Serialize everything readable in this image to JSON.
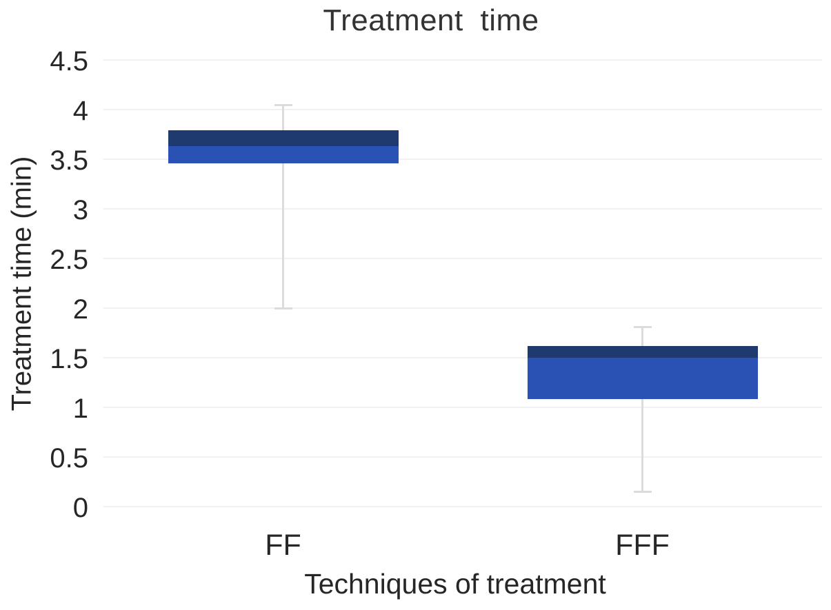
{
  "chart": {
    "title": "Treatment time",
    "y_axis": {
      "label": "Treatment time (min)",
      "ticks": [
        "4.5",
        "4",
        "3.5",
        "3",
        "2.5",
        "2",
        "1.5",
        "1",
        "0.5",
        "0"
      ]
    },
    "x_axis": {
      "label": "Techniques of treatment",
      "categories": [
        "FF",
        "FFF"
      ]
    },
    "colors": {
      "upper_box": "#1f3a6e",
      "lower_box": "#2a52b5",
      "whisker": "#dcdcdc",
      "gridline": "#f1f1f1",
      "text": "#262626"
    }
  },
  "chart_data": {
    "type": "boxplot",
    "title": "Treatment time",
    "xlabel": "Techniques of treatment",
    "ylabel": "Treatment time (min)",
    "categories": [
      "FF",
      "FFF"
    ],
    "series": [
      {
        "name": "FF",
        "min": 2.0,
        "q1": 3.46,
        "median": 3.63,
        "q3": 3.79,
        "max": 4.05
      },
      {
        "name": "FFF",
        "min": 0.15,
        "q1": 1.08,
        "median": 1.5,
        "q3": 1.62,
        "max": 1.81
      }
    ],
    "ylim": [
      0,
      4.5
    ],
    "ytick_step": 0.5,
    "grid": true,
    "legend": false,
    "box_style": {
      "upper_segment": "median_to_q3_dark",
      "lower_segment": "q1_to_median_light"
    }
  }
}
